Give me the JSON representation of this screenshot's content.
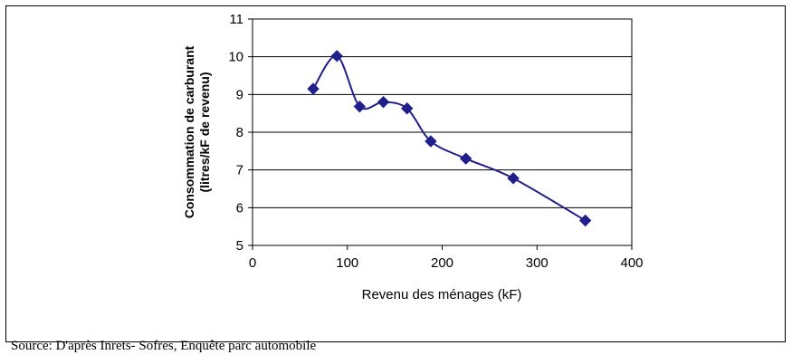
{
  "chart_data": {
    "type": "line",
    "title": "",
    "xlabel": "Revenu des ménages (kF)",
    "ylabel_lines": [
      "Consommation de carburant",
      "(litres/kF de revenu)"
    ],
    "xlim": [
      0,
      400
    ],
    "ylim": [
      5,
      11
    ],
    "x_ticks": [
      0,
      100,
      200,
      300,
      400
    ],
    "y_ticks": [
      5,
      6,
      7,
      8,
      9,
      10,
      11
    ],
    "grid": "horizontal",
    "line_color": "#1f1f8c",
    "marker": "diamond",
    "series": [
      {
        "x": [
          64,
          89,
          113,
          138,
          163,
          188,
          225,
          275,
          351
        ],
        "y": [
          9.15,
          10.02,
          8.68,
          8.8,
          8.63,
          7.76,
          7.3,
          6.78,
          5.66
        ]
      }
    ]
  },
  "footer": {
    "source": "Source: D'après Inrets- Sofres, Enquête parc automobile"
  }
}
